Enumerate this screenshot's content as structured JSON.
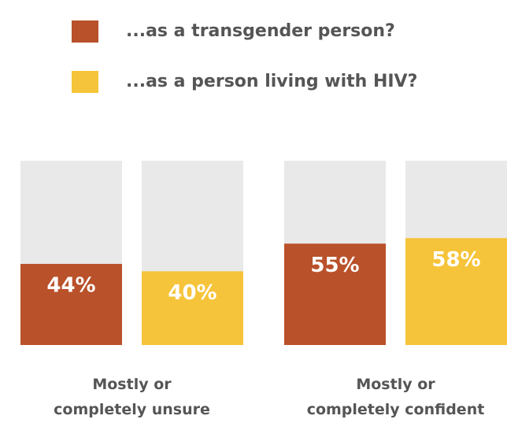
{
  "chart_data": {
    "type": "bar",
    "categories": [
      "Mostly or\ncompletely unsure",
      "Mostly or\ncompletely confident"
    ],
    "series": [
      {
        "name": "...as a transgender person?",
        "color": "#b9512a",
        "values": [
          44,
          55
        ],
        "value_labels": [
          "44%",
          "55%"
        ]
      },
      {
        "name": "...as a person living with HIV?",
        "color": "#f6c43a",
        "values": [
          40,
          58
        ],
        "value_labels": [
          "40%",
          "58%"
        ]
      }
    ],
    "ylim": [
      0,
      100
    ]
  }
}
